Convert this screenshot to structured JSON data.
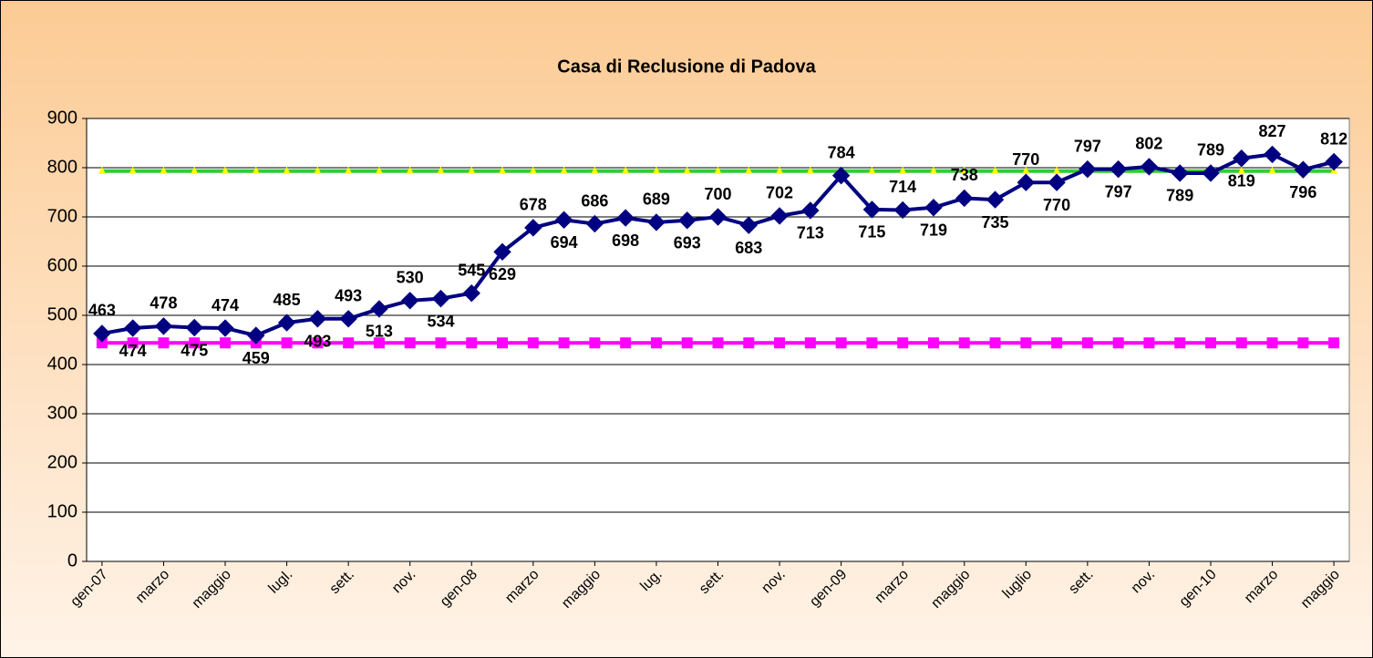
{
  "chart_data": {
    "type": "line",
    "title": "Casa di Reclusione di Padova",
    "categories": [
      "gen-07",
      null,
      "marzo",
      null,
      "maggio",
      null,
      "lugl.",
      null,
      "sett.",
      null,
      "nov.",
      null,
      "gen-08",
      null,
      "marzo",
      null,
      "maggio",
      null,
      "lug.",
      null,
      "sett.",
      null,
      "nov.",
      null,
      "gen-09",
      null,
      "marzo",
      null,
      "maggio",
      null,
      "luglio",
      null,
      "sett.",
      null,
      "nov.",
      null,
      "gen-10",
      null,
      "marzo",
      null,
      "maggio"
    ],
    "series": [
      {
        "color": "#000080",
        "marker": "diamond",
        "show_labels": true,
        "values": [
          463,
          474,
          478,
          475,
          474,
          459,
          485,
          493,
          493,
          513,
          530,
          534,
          545,
          629,
          678,
          694,
          686,
          698,
          689,
          693,
          700,
          683,
          702,
          713,
          784,
          715,
          714,
          719,
          738,
          735,
          770,
          770,
          797,
          797,
          802,
          789,
          789,
          819,
          827,
          796,
          812
        ]
      },
      {
        "color": "#ff00ff",
        "marker": "square",
        "show_labels": false,
        "values": [
          444,
          444,
          444,
          444,
          444,
          444,
          444,
          444,
          444,
          444,
          444,
          444,
          444,
          444,
          444,
          444,
          444,
          444,
          444,
          444,
          444,
          444,
          444,
          444,
          444,
          444,
          444,
          444,
          444,
          444,
          444,
          444,
          444,
          444,
          444,
          444,
          444,
          444,
          444,
          444,
          444
        ]
      },
      {
        "color": "#33cc33",
        "marker": "triangle",
        "marker_color": "#ffff00",
        "show_labels": false,
        "values": [
          793,
          793,
          793,
          793,
          793,
          793,
          793,
          793,
          793,
          793,
          793,
          793,
          793,
          793,
          793,
          793,
          793,
          793,
          793,
          793,
          793,
          793,
          793,
          793,
          793,
          793,
          793,
          793,
          793,
          793,
          793,
          793,
          793,
          793,
          793,
          793,
          793,
          793,
          793,
          793,
          793
        ]
      }
    ],
    "ylim": [
      0,
      900
    ],
    "yticks": [
      0,
      100,
      200,
      300,
      400,
      500,
      600,
      700,
      800,
      900
    ],
    "grid": true
  }
}
